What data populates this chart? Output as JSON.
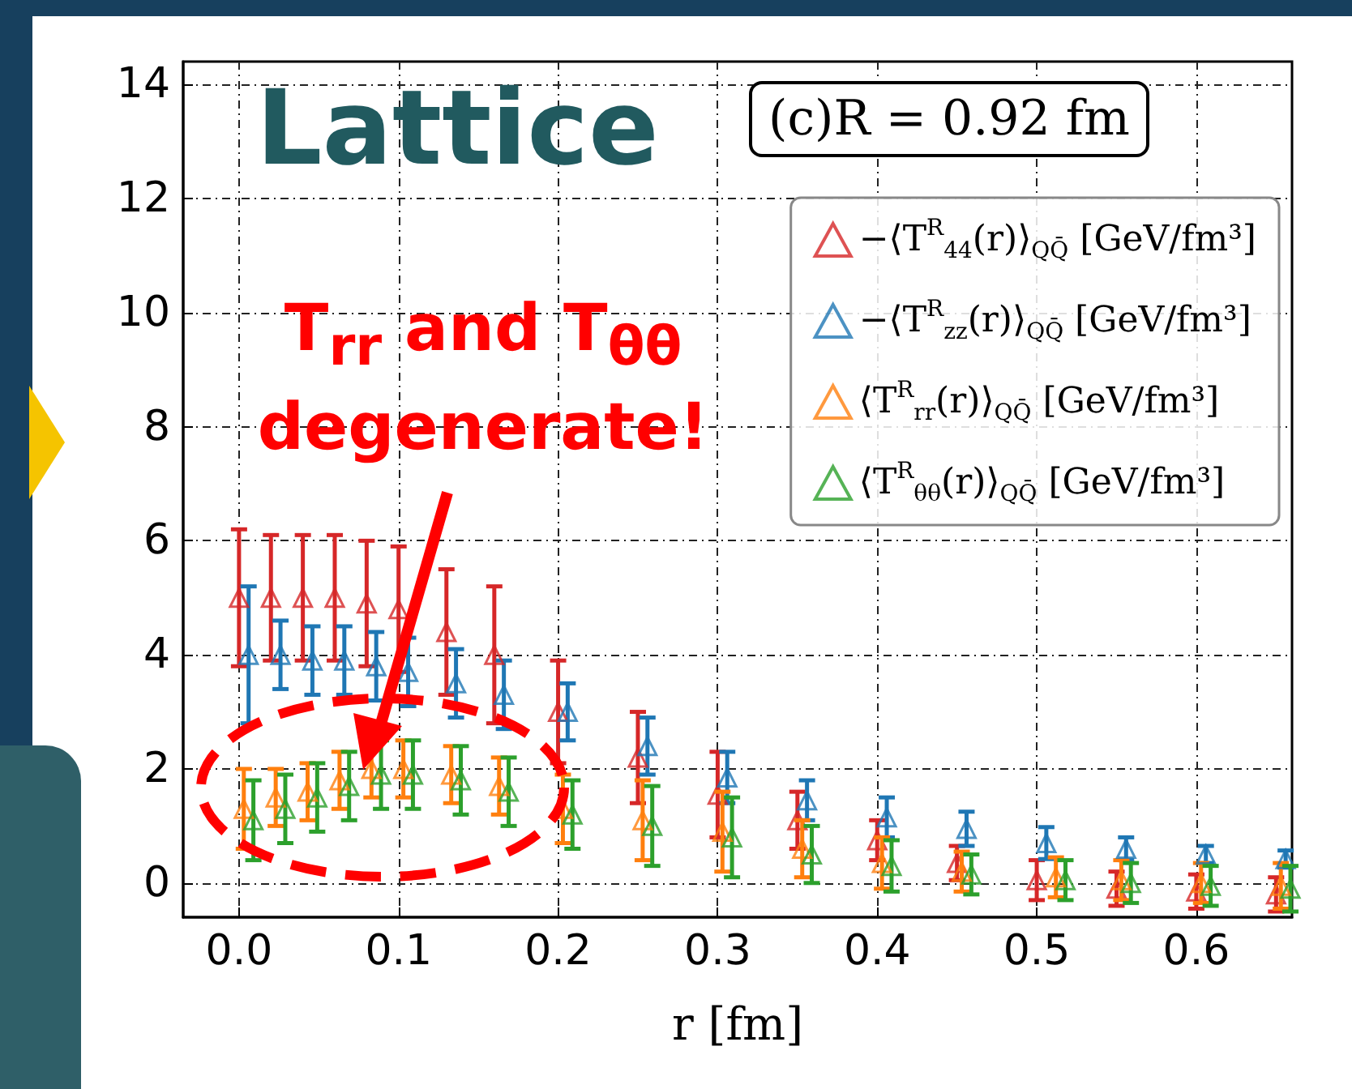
{
  "chart_data": {
    "type": "scatter",
    "annotations": [
      "Lattice",
      "(c)R = 0.92 fm",
      "T$_{rr}$ and T$_{θθ}$ degenerate!"
    ],
    "xlabel": "r [fm]",
    "x": [
      0,
      0.02,
      0.04,
      0.06,
      0.08,
      0.1,
      0.13,
      0.16,
      0.2,
      0.25,
      0.3,
      0.35,
      0.4,
      0.45,
      0.5,
      0.55,
      0.6,
      0.65
    ],
    "series": [
      {
        "name": "−⟨T$^{R}$$_{44}$(r)⟩$_{QQ̄}$ [GeV/fm³]",
        "color": "#d62728",
        "values": [
          5.0,
          5.0,
          5.0,
          5.0,
          4.9,
          4.8,
          4.4,
          4.0,
          3.0,
          2.2,
          1.55,
          1.1,
          0.75,
          0.35,
          0.05,
          -0.1,
          -0.15,
          -0.2
        ],
        "errors": [
          1.2,
          1.1,
          1.1,
          1.1,
          1.1,
          1.1,
          1.1,
          1.2,
          0.9,
          0.8,
          0.75,
          0.5,
          0.35,
          0.3,
          0.35,
          0.3,
          0.3,
          0.3
        ]
      },
      {
        "name": "−⟨T$^{R}$$_{zz}$(r)⟩$_{QQ̄}$ [GeV/fm³]",
        "color": "#1f77b4",
        "x": [
          0.006,
          0.026,
          0.046,
          0.066,
          0.086,
          0.106,
          0.136,
          0.166,
          0.206,
          0.256,
          0.306,
          0.356,
          0.406,
          0.456,
          0.506,
          0.556,
          0.606,
          0.656
        ],
        "values": [
          4.0,
          4.0,
          3.9,
          3.9,
          3.8,
          3.7,
          3.5,
          3.3,
          3.0,
          2.4,
          1.85,
          1.45,
          1.15,
          0.95,
          0.7,
          0.6,
          0.5,
          0.42
        ],
        "errors": [
          1.2,
          0.6,
          0.6,
          0.6,
          0.6,
          0.6,
          0.6,
          0.6,
          0.5,
          0.5,
          0.45,
          0.35,
          0.35,
          0.3,
          0.28,
          0.2,
          0.15,
          0.15
        ]
      },
      {
        "name": "⟨T$^{R}$$_{rr}$(r)⟩$_{QQ̄}$ [GeV/fm³]",
        "color": "#ff7f0e",
        "x": [
          0.003,
          0.023,
          0.043,
          0.063,
          0.083,
          0.103,
          0.133,
          0.163,
          0.203,
          0.253,
          0.303,
          0.353,
          0.403,
          0.453,
          0.512,
          0.553,
          0.603,
          0.653
        ],
        "values": [
          1.3,
          1.5,
          1.6,
          1.8,
          2.0,
          2.0,
          1.9,
          1.7,
          1.3,
          1.1,
          0.9,
          0.6,
          0.35,
          0.2,
          0.1,
          0.05,
          0.0,
          -0.05
        ],
        "errors": [
          0.7,
          0.5,
          0.5,
          0.5,
          0.5,
          0.5,
          0.5,
          0.5,
          0.6,
          0.7,
          0.7,
          0.5,
          0.45,
          0.35,
          0.35,
          0.35,
          0.35,
          0.4
        ]
      },
      {
        "name": "⟨T$^{R}$$_{θθ}$(r)⟩$_{QQ̄}$ [GeV/fm³]",
        "color": "#2ca02c",
        "x": [
          0.009,
          0.029,
          0.049,
          0.069,
          0.089,
          0.109,
          0.139,
          0.169,
          0.209,
          0.259,
          0.309,
          0.359,
          0.409,
          0.459,
          0.518,
          0.559,
          0.609,
          0.659
        ],
        "values": [
          1.1,
          1.3,
          1.5,
          1.7,
          1.9,
          1.9,
          1.8,
          1.6,
          1.2,
          1.0,
          0.8,
          0.5,
          0.3,
          0.15,
          0.05,
          0.0,
          -0.05,
          -0.1
        ],
        "errors": [
          0.7,
          0.6,
          0.6,
          0.6,
          0.6,
          0.6,
          0.6,
          0.6,
          0.6,
          0.7,
          0.7,
          0.5,
          0.45,
          0.35,
          0.35,
          0.35,
          0.35,
          0.4
        ]
      }
    ],
    "xlim": [
      -0.035,
      0.66
    ],
    "xticks": [
      {
        "value": 0,
        "label": "0.0"
      },
      0.1,
      0.2,
      0.3,
      0.4,
      0.5,
      0.6
    ],
    "ylim": [
      -0.6,
      14.4
    ],
    "yticks": [
      0,
      2,
      4,
      6,
      8,
      10,
      12,
      14
    ],
    "grid": true,
    "legend": "top right",
    "marker": "triangle"
  }
}
